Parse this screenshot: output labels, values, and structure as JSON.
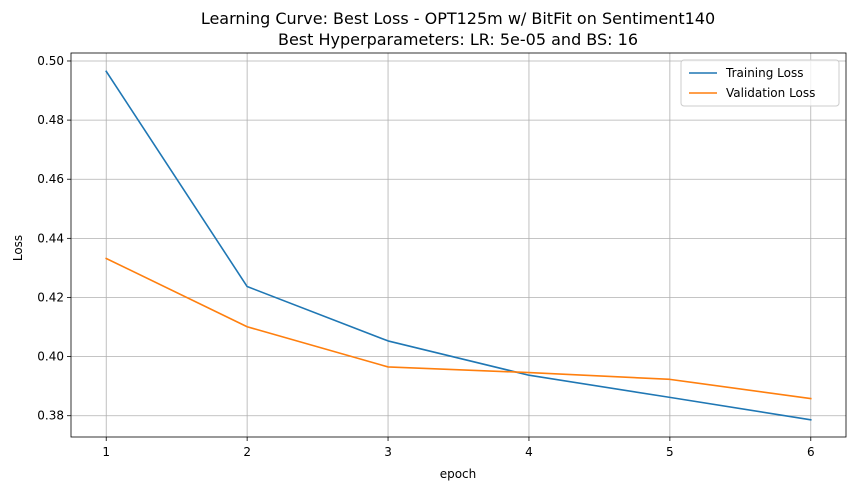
{
  "chart_data": {
    "type": "line",
    "title": "Learning Curve: Best Loss - OPT125m w/ BitFit on Sentiment140",
    "subtitle": "Best Hyperparameters: LR: 5e-05 and BS: 16",
    "xlabel": "epoch",
    "ylabel": "Loss",
    "xlim": [
      0.75,
      6.25
    ],
    "ylim": [
      0.3728,
      0.5027
    ],
    "xticks": [
      1,
      2,
      3,
      4,
      5,
      6
    ],
    "yticks": [
      0.38,
      0.4,
      0.42,
      0.44,
      0.46,
      0.48,
      0.5
    ],
    "ytick_labels": [
      "0.38",
      "0.40",
      "0.42",
      "0.44",
      "0.46",
      "0.48",
      "0.50"
    ],
    "grid": true,
    "legend_position": "top-right",
    "x": [
      1,
      2,
      3,
      4,
      5,
      6
    ],
    "series": [
      {
        "name": "Training Loss",
        "color": "#1f77b4",
        "values": [
          0.4965,
          0.4237,
          0.4053,
          0.3937,
          0.3862,
          0.3786
        ]
      },
      {
        "name": "Validation Loss",
        "color": "#ff7f0e",
        "values": [
          0.4332,
          0.4101,
          0.3965,
          0.3946,
          0.3923,
          0.3858
        ]
      }
    ]
  }
}
